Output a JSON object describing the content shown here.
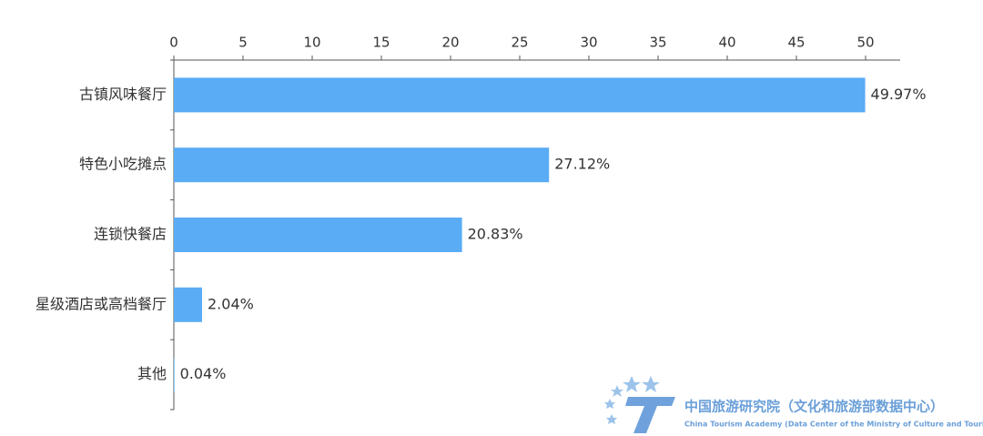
{
  "chart_data": {
    "type": "barh",
    "categories": [
      "古镇风味餐厅",
      "特色小吃摊点",
      "连锁快餐店",
      "星级酒店或高档餐厅",
      "其他"
    ],
    "values": [
      49.97,
      27.12,
      20.83,
      2.04,
      0.04
    ],
    "value_labels": [
      "49.97%",
      "27.12%",
      "20.83%",
      "2.04%",
      "0.04%"
    ],
    "color": "#5aacf5",
    "xlim": [
      0,
      52.5
    ],
    "xticks": [
      0,
      5,
      10,
      15,
      20,
      25,
      30,
      35,
      40,
      45,
      50
    ],
    "x_axis_position": "top",
    "grid": false,
    "watermark": [
      "中国旅游研究院（文化和旅游部数据中心）",
      "China Tourism Academy (Data Center of the Ministry of Culture and Tourism)"
    ]
  }
}
